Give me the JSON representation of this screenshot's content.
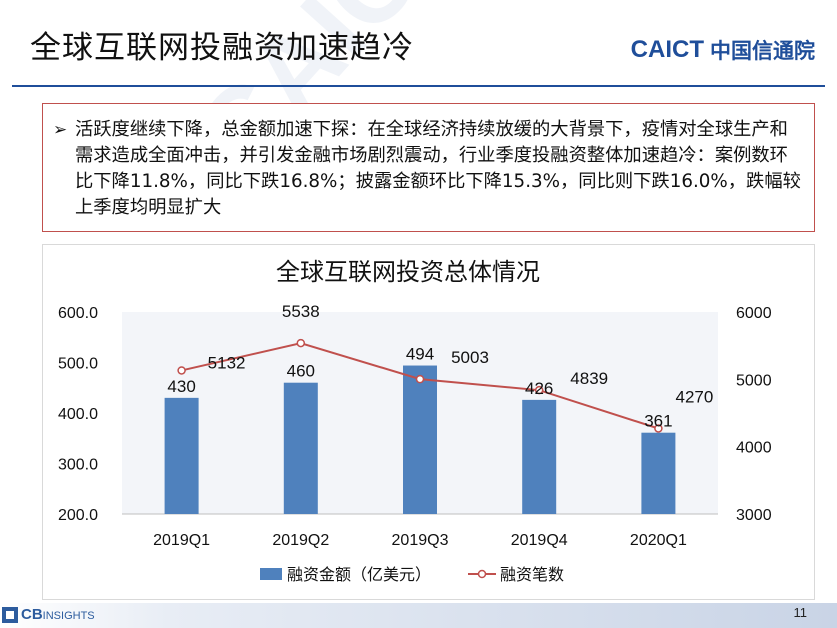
{
  "header": {
    "title": "全球互联网投融资加速趋冷",
    "logo_en": "CAICT",
    "logo_cn": "中国信通院"
  },
  "bullet": {
    "marker": "➢",
    "text": "活跃度继续下降，总金额加速下探：在全球经济持续放缓的大背景下，疫情对全球生产和需求造成全面冲击，并引发金融市场剧烈震动，行业季度投融资整体加速趋冷：案例数环比下降11.8%，同比下跌16.8%；披露金额环比下降15.3%，同比则下跌16.0%，跌幅较上季度均明显扩大"
  },
  "chart_data": {
    "type": "bar",
    "title": "全球互联网投资总体情况",
    "categories": [
      "2019Q1",
      "2019Q2",
      "2019Q3",
      "2019Q4",
      "2020Q1"
    ],
    "series": [
      {
        "name": "融资金额（亿美元）",
        "type": "bar",
        "axis": "left",
        "values": [
          430,
          460,
          494,
          426,
          361
        ],
        "color": "#4f81bd"
      },
      {
        "name": "融资笔数",
        "type": "line",
        "axis": "right",
        "values": [
          5132,
          5538,
          5003,
          4839,
          4270
        ],
        "color": "#c0504d"
      }
    ],
    "ylim_left": [
      200,
      600
    ],
    "yticks_left": [
      "600.0",
      "500.0",
      "400.0",
      "300.0",
      "200.0"
    ],
    "ylim_right": [
      3000,
      6000
    ],
    "yticks_right": [
      "6000",
      "5000",
      "4000",
      "3000"
    ],
    "legend_position": "bottom",
    "grid": false
  },
  "footer": {
    "brand": "CB",
    "brand_small": "INSIGHTS",
    "page_number": "11"
  },
  "watermark": "CAICT 中国信通院"
}
